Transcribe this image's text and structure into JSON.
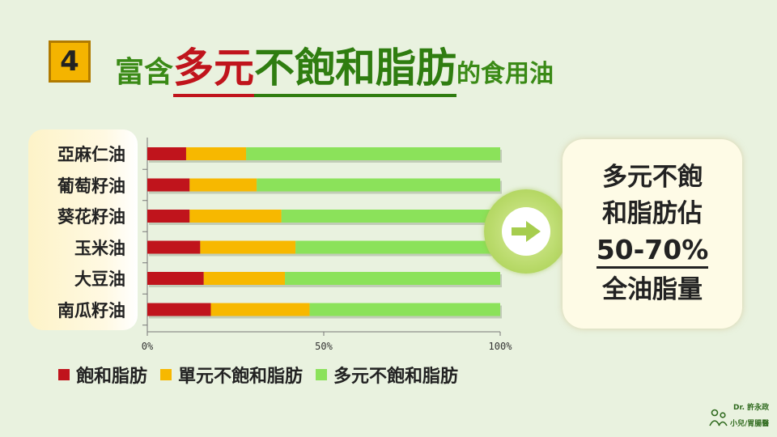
{
  "badge": "4",
  "title": {
    "prefix": "富含",
    "highlight_red": "多元",
    "highlight_green": "不飽和脂肪",
    "suffix": "的食用油"
  },
  "chart_data": {
    "type": "bar",
    "orientation": "horizontal",
    "stacked": true,
    "categories": [
      "亞麻仁油",
      "葡萄籽油",
      "葵花籽油",
      "玉米油",
      "大豆油",
      "南瓜籽油"
    ],
    "series": [
      {
        "name": "飽和脂肪",
        "color": "#c0141c",
        "values": [
          11,
          12,
          12,
          15,
          16,
          18
        ]
      },
      {
        "name": "單元不飽和脂肪",
        "color": "#f7b800",
        "values": [
          17,
          19,
          26,
          27,
          23,
          28
        ]
      },
      {
        "name": "多元不飽和脂肪",
        "color": "#8be25a",
        "values": [
          72,
          69,
          62,
          58,
          61,
          54
        ]
      }
    ],
    "x_ticks": [
      "0%",
      "50%",
      "100%"
    ],
    "xlim": [
      0,
      100
    ],
    "legend": "bottom-left"
  },
  "callout": {
    "line1": "多元不飽",
    "line2": "和脂肪佔",
    "line3": "50-70%",
    "line4": "全油脂量"
  },
  "arrow_icon": "arrow-right-icon",
  "logo": {
    "line1": "Dr. 許永政",
    "line2": "小兒/胃腸醫"
  }
}
